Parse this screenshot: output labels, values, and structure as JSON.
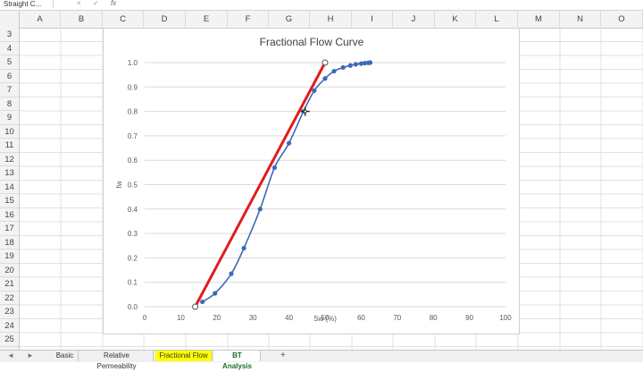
{
  "formula_bar": {
    "name_box": "Straight C...",
    "cancel_icon": "×",
    "enter_icon": "✓",
    "fx_icon": "fx"
  },
  "columns": [
    "A",
    "B",
    "C",
    "D",
    "E",
    "F",
    "G",
    "H",
    "I",
    "J",
    "K",
    "L",
    "M",
    "N",
    "O"
  ],
  "rows": [
    "3",
    "4",
    "5",
    "6",
    "7",
    "8",
    "9",
    "10",
    "11",
    "12",
    "13",
    "14",
    "15",
    "16",
    "17",
    "18",
    "19",
    "20",
    "21",
    "22",
    "23",
    "24",
    "25"
  ],
  "chart": {
    "title": "Fractional Flow Curve"
  },
  "chart_data": {
    "type": "scatter",
    "title": "Fractional Flow Curve",
    "xlabel": "Sw (%)",
    "ylabel": "fw",
    "xlim": [
      0,
      100
    ],
    "ylim": [
      0,
      1.0
    ],
    "x_ticks": [
      "0",
      "10",
      "20",
      "30",
      "40",
      "50",
      "60",
      "70",
      "80",
      "90",
      "100"
    ],
    "y_ticks": [
      "0.0",
      "0.1",
      "0.2",
      "0.3",
      "0.4",
      "0.5",
      "0.6",
      "0.7",
      "0.8",
      "0.9",
      "1.0"
    ],
    "grid": "horizontal",
    "series": [
      {
        "style": "smooth line with markers",
        "color": "#3d69b8",
        "x": [
          16,
          19.5,
          24,
          27.5,
          32,
          36,
          40,
          44,
          47,
          50,
          52.5,
          55,
          57,
          58.5,
          60,
          61,
          62,
          62.5
        ],
        "y": [
          0.02,
          0.055,
          0.135,
          0.24,
          0.4,
          0.57,
          0.67,
          0.8,
          0.885,
          0.935,
          0.965,
          0.98,
          0.988,
          0.993,
          0.996,
          0.998,
          0.999,
          1.0
        ]
      },
      {
        "style": "tangent line",
        "color": "#e11d1d",
        "x": [
          14,
          50
        ],
        "y": [
          0.0,
          1.0
        ]
      }
    ],
    "hollow_markers": {
      "x": [
        14,
        50
      ],
      "y": [
        0.0,
        1.0
      ]
    }
  },
  "sheet_tabs": [
    {
      "label": "Basic",
      "active": false
    },
    {
      "label": "Relative Permeability",
      "active": false
    },
    {
      "label": "Fractional Flow",
      "active": false,
      "highlight": "#ffff00"
    },
    {
      "label": "BT Analysis",
      "active": true
    }
  ],
  "tab_add": "+",
  "tab_nav_prev": "◄",
  "tab_nav_next": "►",
  "colors": {
    "series_blue": "#3d69b8",
    "tangent_red": "#e11d1d",
    "active_tab_text": "#1e6e2e",
    "highlight_tab": "#ffff00"
  }
}
